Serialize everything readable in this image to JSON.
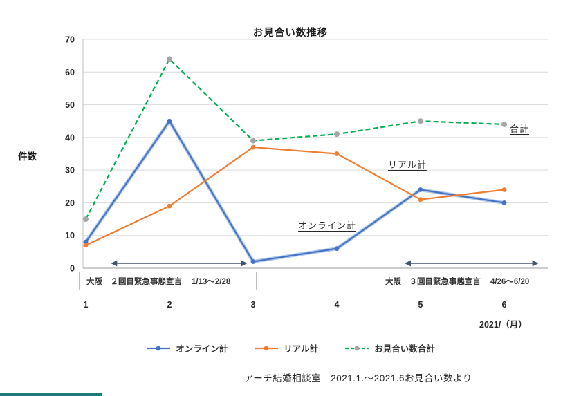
{
  "chart_data": {
    "type": "line",
    "title": "お見合い数推移",
    "ylabel": "件数",
    "xlabel": "2021/（月）",
    "x": [
      1,
      2,
      3,
      4,
      5,
      6
    ],
    "series": [
      {
        "name": "オンライン計",
        "values": [
          8,
          45,
          2,
          6,
          24,
          20
        ],
        "color": "#4472c4",
        "halo": "#aec6e8",
        "marker_color": "#4472c4",
        "dash": false
      },
      {
        "name": "リアル計",
        "values": [
          7,
          19,
          37,
          35,
          21,
          24
        ],
        "color": "#ed7d31",
        "halo": null,
        "marker_color": "#ed7d31",
        "dash": false
      },
      {
        "name": "お見合い数合計",
        "values": [
          15,
          64,
          39,
          41,
          45,
          44
        ],
        "color": "#00b050",
        "halo": null,
        "marker_color": "#a6a6a6",
        "dash": true
      }
    ],
    "ylim": [
      0,
      70
    ],
    "yticks": [
      0,
      10,
      20,
      30,
      40,
      50,
      60,
      70
    ],
    "grid": true,
    "legend_position": "bottom"
  },
  "annotations": {
    "total_label": "合計",
    "real_label": "リアル計",
    "online_label": "オンライン計",
    "box1": {
      "label": "大阪　２回目緊急事態宣言",
      "range": "1/13～2/28",
      "arrow_from_month": 1.3,
      "arrow_to_month": 2.93
    },
    "box2": {
      "label": "大阪　３回目緊急事態宣言",
      "range": "4/26～6/20",
      "arrow_from_month": 4.81,
      "arrow_to_month": 6.41
    }
  },
  "footer": {
    "text": "アーチ結婚相談室　2021.1.～2021.6お見合い数より"
  },
  "colors": {
    "gridline": "#d9d9d9",
    "axis": "#9a9a9a",
    "arrow": "#44546a",
    "accent_bar": "#1e7c78"
  }
}
